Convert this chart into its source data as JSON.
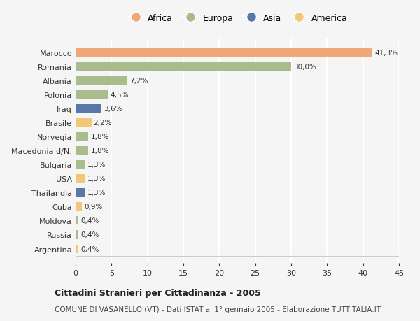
{
  "countries": [
    "Marocco",
    "Romania",
    "Albania",
    "Polonia",
    "Iraq",
    "Brasile",
    "Norvegia",
    "Macedonia d/N.",
    "Bulgaria",
    "USA",
    "Thailandia",
    "Cuba",
    "Moldova",
    "Russia",
    "Argentina"
  ],
  "values": [
    41.3,
    30.0,
    7.2,
    4.5,
    3.6,
    2.2,
    1.8,
    1.8,
    1.3,
    1.3,
    1.3,
    0.9,
    0.4,
    0.4,
    0.4
  ],
  "labels": [
    "41,3%",
    "30,0%",
    "7,2%",
    "4,5%",
    "3,6%",
    "2,2%",
    "1,8%",
    "1,8%",
    "1,3%",
    "1,3%",
    "1,3%",
    "0,9%",
    "0,4%",
    "0,4%",
    "0,4%"
  ],
  "continents": [
    "Africa",
    "Europa",
    "Europa",
    "Europa",
    "Asia",
    "America",
    "Europa",
    "Europa",
    "Europa",
    "America",
    "Asia",
    "America",
    "Europa",
    "Europa",
    "America"
  ],
  "colors": {
    "Africa": "#F0A878",
    "Europa": "#A8BC8C",
    "Asia": "#5878A8",
    "America": "#F0C878"
  },
  "legend_order": [
    "Africa",
    "Europa",
    "Asia",
    "America"
  ],
  "title": "Cittadini Stranieri per Cittadinanza - 2005",
  "subtitle": "COMUNE DI VASANELLO (VT) - Dati ISTAT al 1° gennaio 2005 - Elaborazione TUTTITALIA.IT",
  "xlim": [
    0,
    45
  ],
  "xticks": [
    0,
    5,
    10,
    15,
    20,
    25,
    30,
    35,
    40,
    45
  ],
  "background_color": "#f5f5f5",
  "grid_color": "#ffffff",
  "bar_height": 0.6
}
